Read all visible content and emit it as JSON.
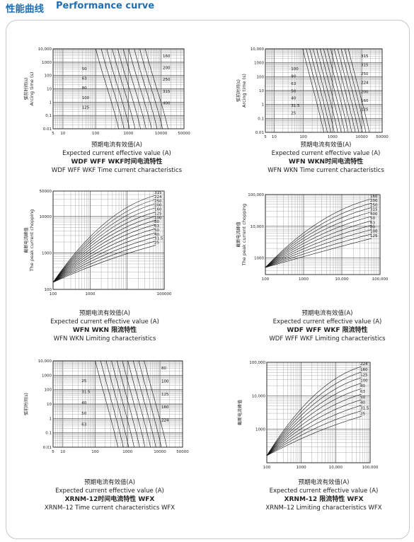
{
  "header": {
    "title_cn": "性能曲线",
    "title_en": "Performance curve"
  },
  "chart_data": [
    {
      "type": "line",
      "id": "p1",
      "ylabel_cn": "弧前时间(s)",
      "ylabel_en": "Arcing time (s)",
      "xlabel_cn": "预期电流有效值(A)",
      "xlabel_en": "Expected current effective value (A)",
      "title_cn": "WDF  WFF  WKF时间电流特性",
      "title_en": "WDF WFF WKF Time current characteristics",
      "xticks": [
        "5",
        "10",
        "100",
        "1000",
        "10000",
        "50000"
      ],
      "yticks": [
        "10,000",
        "1000",
        "100",
        "10",
        "1",
        "0.1",
        "0.01"
      ],
      "series_labels": [
        "50",
        "63",
        "80",
        "100",
        "125",
        "160",
        "200",
        "250",
        "315",
        "400"
      ],
      "xlim": [
        5,
        50000
      ],
      "ylim": [
        0.01,
        10000
      ],
      "scale": "log-log"
    },
    {
      "type": "line",
      "id": "p2",
      "ylabel_cn": "弧前时间(s)",
      "ylabel_en": "Arcing time (s)",
      "xlabel_cn": "预期电流有效值(A)",
      "xlabel_en": "Expected current effective value (A)",
      "title_cn": "WFN  WKN时间电流特性",
      "title_en": "WFN WKN Time current characteristics",
      "xticks": [
        "5",
        "10",
        "100",
        "1000",
        "10000",
        "50000"
      ],
      "yticks": [
        "10,000",
        "1000",
        "100",
        "10",
        "1",
        "0.1",
        "0.01"
      ],
      "series_labels": [
        "100",
        "80",
        "63",
        "50",
        "40",
        "31.5",
        "25",
        "315",
        "315",
        "250",
        "224",
        "200",
        "160",
        "125"
      ],
      "xlim": [
        5,
        50000
      ],
      "ylim": [
        0.01,
        10000
      ],
      "scale": "log-log"
    },
    {
      "type": "line",
      "id": "p3",
      "ylabel_cn": "截断电流峰值",
      "ylabel_en": "The peak current chopping",
      "xlabel_cn": "预期电流有效值(A)",
      "xlabel_en": "Expected current effective value (A)",
      "title_cn": "WFN  WKN  限流特性",
      "title_en": "WFN WKN Limiting characteristics",
      "xticks": [
        "100",
        "1000",
        "100000"
      ],
      "yticks": [
        "50000",
        "10000",
        "1000",
        "100"
      ],
      "series_labels": [
        "315",
        "224",
        "250",
        "200",
        "160",
        "125",
        "100",
        "80",
        "63",
        "50",
        "40",
        "31.5",
        "25"
      ],
      "xlim": [
        100,
        100000
      ],
      "ylim": [
        100,
        50000
      ],
      "scale": "log-log"
    },
    {
      "type": "line",
      "id": "p4",
      "ylabel_cn": "截断电流峰值",
      "ylabel_en": "The peak current chopping",
      "xlabel_cn": "预期电流有效值(A)",
      "xlabel_en": "Expected current effective value (A)",
      "title_cn": "WDF  WFF  WKF  限流特性",
      "title_en": "WDF WFF WKF Limiting characteristics",
      "xticks": [
        "100",
        "1000",
        "10,000",
        "100,000"
      ],
      "yticks": [
        "100,000",
        "10,000",
        "1000"
      ],
      "series_labels": [
        "160",
        "200",
        "250",
        "315",
        "400",
        "50",
        "63",
        "80",
        "100",
        "125"
      ],
      "xlim": [
        100,
        100000
      ],
      "ylim": [
        300,
        100000
      ],
      "scale": "log-log"
    },
    {
      "type": "line",
      "id": "p5",
      "ylabel_cn": "弧前时间(s)",
      "xlabel_cn": "预期电流有效值(A)",
      "xlabel_en": "Expected current effective value (A)",
      "title_cn": "XRNM-12时间电流特性 WFX",
      "title_en": "XRNM–12 Time current characteristics WFX",
      "xticks": [
        "5",
        "10",
        "100",
        "1000",
        "10000",
        "50000"
      ],
      "yticks": [
        "10,000",
        "1000",
        "100",
        "10",
        "1",
        "0.1",
        "0.01"
      ],
      "series_labels": [
        "25",
        "31.5",
        "40",
        "50",
        "63",
        "80",
        "100",
        "125",
        "160",
        "224"
      ],
      "xlim": [
        5,
        50000
      ],
      "ylim": [
        0.01,
        10000
      ],
      "scale": "log-log"
    },
    {
      "type": "line",
      "id": "p6",
      "ylabel_cn": "截断电流峰值",
      "xlabel_cn": "预期电流有效值(A)",
      "xlabel_en": "Expected current effective value (A)",
      "title_cn": "XRNM-12  限流特性  WFX",
      "title_en": "XRNM–12 Limiting characteristics  WFX",
      "xticks": [
        "100",
        "1000",
        "10,000",
        "100,000"
      ],
      "yticks": [
        "100,000",
        "10,000",
        "1000"
      ],
      "series_labels": [
        "224",
        "160",
        "125",
        "100",
        "80",
        "63",
        "50",
        "40",
        "31.5",
        "25"
      ],
      "xlim": [
        100,
        100000
      ],
      "ylim": [
        100,
        100000
      ],
      "scale": "log-log"
    }
  ]
}
